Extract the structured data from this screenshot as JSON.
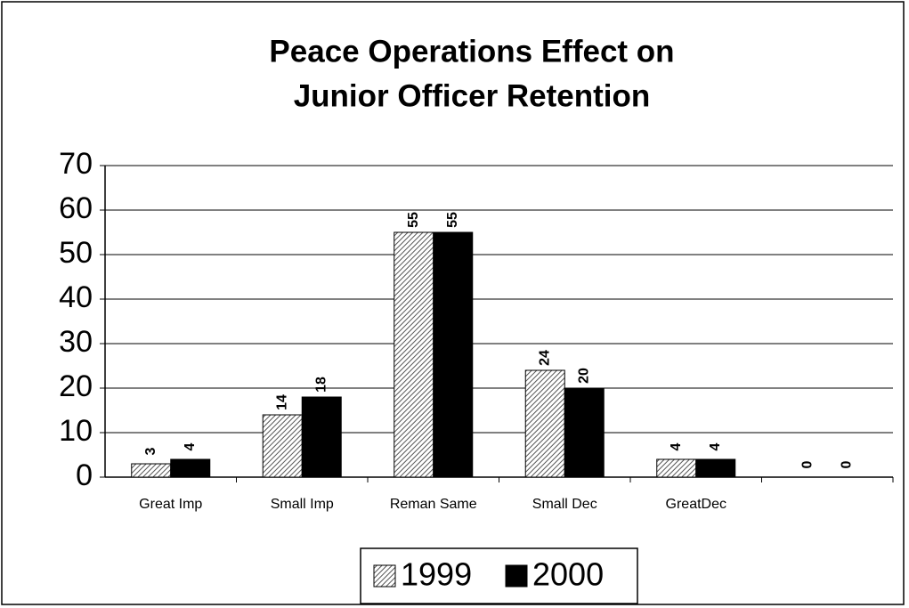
{
  "chart_data": {
    "type": "bar",
    "title": [
      "Peace Operations Effect on",
      "Junior Officer Retention"
    ],
    "categories": [
      "Great Imp",
      "Small Imp",
      "Reman Same",
      "Small Dec",
      "GreatDec",
      null
    ],
    "series": [
      {
        "name": "1999",
        "color": "#ffffff",
        "pattern": "hatch",
        "values": [
          3,
          14,
          55,
          24,
          4,
          0
        ]
      },
      {
        "name": "2000",
        "color": "#000000",
        "values": [
          4,
          18,
          55,
          20,
          4,
          0
        ]
      }
    ],
    "ylim": [
      0,
      70
    ],
    "yticks": [
      0,
      10,
      20,
      30,
      40,
      50,
      60,
      70
    ],
    "grid": true,
    "legend": "bottom"
  }
}
